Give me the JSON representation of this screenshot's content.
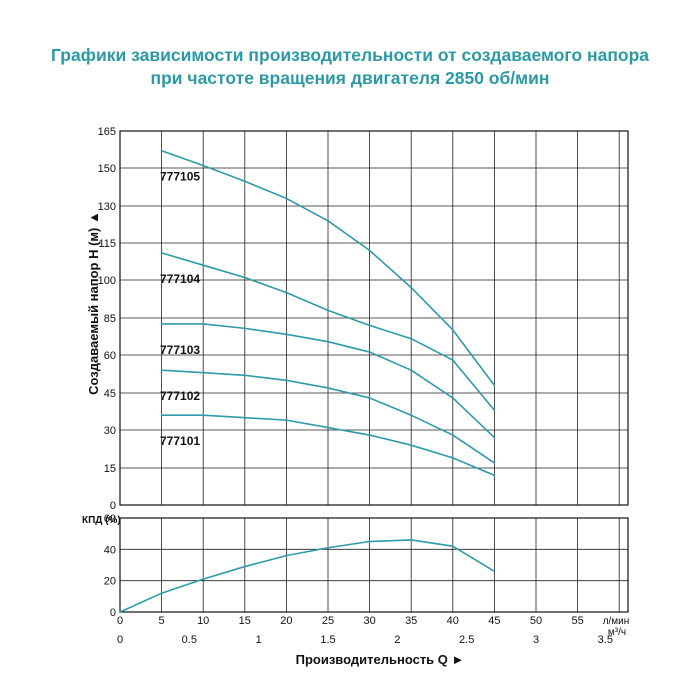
{
  "title": {
    "line1": "Графики зависимости производительности от создаваемого напора",
    "line2": "при частоте вращения двигателя 2850 об/мин"
  },
  "chart_data": [
    {
      "type": "line",
      "ylabel": "Создаваемый напор H (м) ▲",
      "xlabel": "Производительность Q ►",
      "x_unit": "л/мин",
      "x2_unit": "м³/ч",
      "ylim": [
        0,
        165
      ],
      "xlim": [
        0,
        60
      ],
      "yticks": [
        "0",
        "15",
        "30",
        "45",
        "60",
        "85",
        "100",
        "115",
        "130",
        "150",
        "165"
      ],
      "xticks": [
        "0",
        "5",
        "10",
        "15",
        "20",
        "25",
        "30",
        "35",
        "40",
        "45",
        "50",
        "55"
      ],
      "x2ticks": [
        "0",
        "0.5",
        "1",
        "1.5",
        "2",
        "2.5",
        "3",
        "3.5"
      ],
      "grid": true,
      "series": [
        {
          "name": "777105",
          "x": [
            5,
            10,
            15,
            20,
            25,
            30,
            35,
            40,
            45
          ],
          "y": [
            157,
            151,
            143,
            134,
            124,
            112,
            97,
            77,
            48
          ]
        },
        {
          "name": "777104",
          "x": [
            5,
            10,
            15,
            20,
            25,
            30,
            35,
            40,
            45
          ],
          "y": [
            111,
            106,
            101,
            95,
            88,
            80,
            71,
            58,
            38
          ]
        },
        {
          "name": "777103",
          "x": [
            5,
            10,
            15,
            20,
            25,
            30,
            35,
            40,
            45
          ],
          "y": [
            81,
            81,
            78,
            74,
            69,
            62,
            54,
            43,
            27
          ]
        },
        {
          "name": "777102",
          "x": [
            5,
            10,
            15,
            20,
            25,
            30,
            35,
            40,
            45
          ],
          "y": [
            54,
            53,
            52,
            50,
            47,
            43,
            36,
            28,
            17
          ]
        },
        {
          "name": "777101",
          "x": [
            5,
            10,
            15,
            20,
            25,
            30,
            35,
            40,
            45
          ],
          "y": [
            36,
            36,
            35,
            34,
            31,
            28,
            24,
            19,
            12
          ]
        }
      ]
    },
    {
      "type": "line",
      "ylabel": "КПД (%)",
      "ylim": [
        0,
        60
      ],
      "yticks": [
        "0",
        "20",
        "40",
        "60"
      ],
      "grid": true,
      "series": [
        {
          "name": "",
          "x": [
            0,
            5,
            10,
            15,
            20,
            25,
            30,
            35,
            40,
            45
          ],
          "y": [
            0,
            12,
            21,
            29,
            36,
            41,
            45,
            46,
            42,
            26
          ]
        }
      ]
    }
  ]
}
